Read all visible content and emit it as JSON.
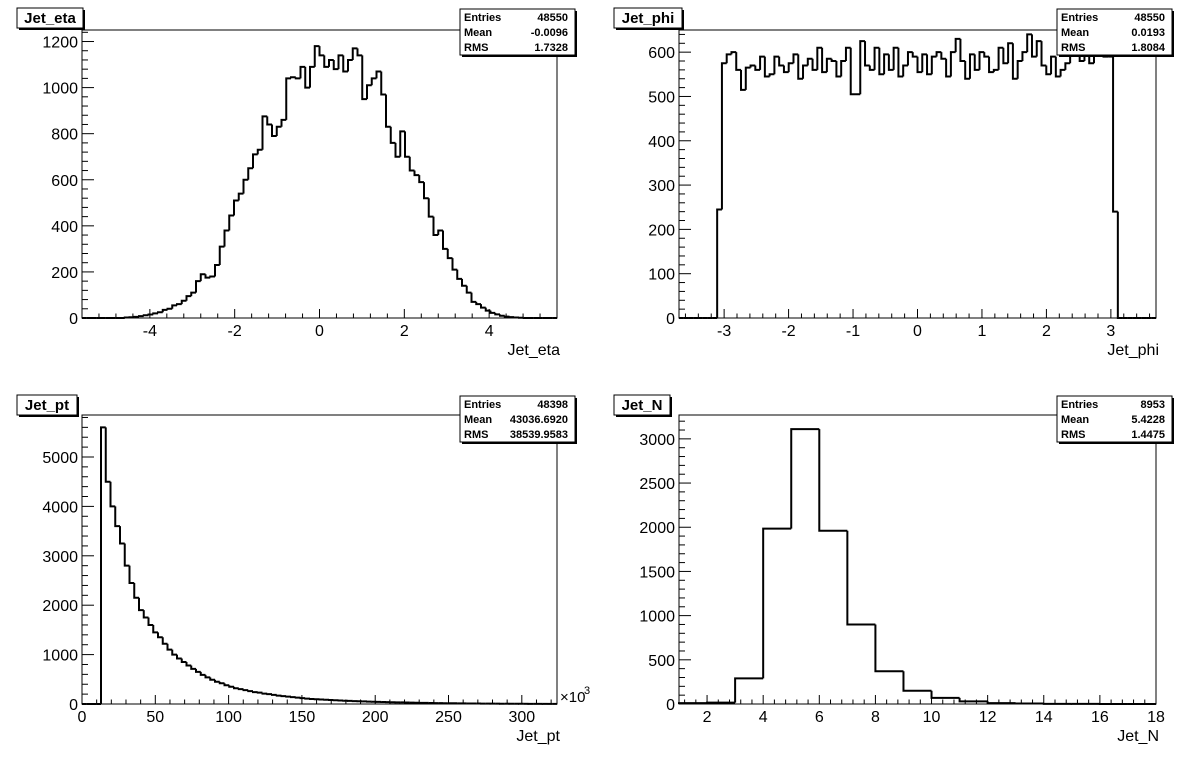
{
  "chart_data": [
    {
      "type": "histogram",
      "title": "Jet_eta",
      "xlabel": "Jet_eta",
      "ylabel": "",
      "xlim": [
        -5.6,
        5.6
      ],
      "ylim": [
        0,
        1250
      ],
      "xticks": [
        -4,
        -2,
        0,
        2,
        4
      ],
      "yticks": [
        0,
        200,
        400,
        600,
        800,
        1000,
        1200
      ],
      "tick_labels_x": [
        "-4",
        "-2",
        "0",
        "2",
        "4"
      ],
      "tick_labels_y": [
        "0",
        "200",
        "400",
        "600",
        "800",
        "1000",
        "1200"
      ],
      "bin_low": -5.6,
      "bin_width": 0.112,
      "values": [
        0,
        0,
        0,
        0,
        0,
        0,
        0,
        0,
        0,
        2,
        3,
        5,
        8,
        12,
        15,
        20,
        25,
        35,
        40,
        55,
        60,
        75,
        95,
        110,
        160,
        190,
        175,
        180,
        230,
        310,
        380,
        445,
        510,
        540,
        600,
        650,
        710,
        730,
        875,
        840,
        790,
        830,
        860,
        1040,
        1045,
        1040,
        1090,
        1000,
        1090,
        1180,
        1140,
        1090,
        1120,
        1080,
        1140,
        1070,
        1120,
        1170,
        1140,
        950,
        1010,
        1040,
        1070,
        970,
        830,
        760,
        700,
        810,
        700,
        640,
        620,
        590,
        520,
        440,
        360,
        380,
        300,
        260,
        210,
        170,
        140,
        110,
        70,
        60,
        45,
        32,
        22,
        16,
        10,
        6,
        4,
        2,
        1,
        0,
        0,
        0,
        0,
        0,
        0,
        0
      ],
      "stats": {
        "entries_label": "Entries",
        "entries": "48550",
        "mean_label": "Mean",
        "mean": "-0.0096",
        "rms_label": "RMS",
        "rms": "1.7328"
      }
    },
    {
      "type": "histogram",
      "title": "Jet_phi",
      "xlabel": "Jet_phi",
      "ylabel": "",
      "xlim": [
        -3.7,
        3.7
      ],
      "ylim": [
        0,
        650
      ],
      "xticks": [
        -3,
        -2,
        -1,
        0,
        1,
        2,
        3
      ],
      "yticks": [
        0,
        100,
        200,
        300,
        400,
        500,
        600
      ],
      "tick_labels_x": [
        "-3",
        "-2",
        "-1",
        "0",
        "1",
        "2",
        "3"
      ],
      "tick_labels_y": [
        "0",
        "100",
        "200",
        "300",
        "400",
        "500",
        "600"
      ],
      "bin_low": -3.7,
      "bin_width": 0.074,
      "values": [
        0,
        0,
        0,
        0,
        0,
        0,
        0,
        0,
        245,
        575,
        595,
        600,
        560,
        515,
        565,
        570,
        560,
        590,
        545,
        550,
        590,
        570,
        555,
        575,
        595,
        540,
        570,
        585,
        560,
        610,
        555,
        585,
        580,
        545,
        580,
        610,
        505,
        505,
        625,
        570,
        560,
        610,
        550,
        595,
        560,
        610,
        545,
        570,
        600,
        590,
        555,
        595,
        550,
        590,
        600,
        585,
        545,
        600,
        630,
        580,
        540,
        595,
        560,
        600,
        590,
        555,
        560,
        610,
        575,
        620,
        540,
        580,
        600,
        640,
        590,
        625,
        570,
        550,
        590,
        545,
        560,
        575,
        600,
        620,
        580,
        630,
        575,
        605,
        595,
        590,
        590,
        240,
        0,
        0,
        0,
        0,
        0,
        0,
        0,
        0
      ],
      "stats": {
        "entries_label": "Entries",
        "entries": "48550",
        "mean_label": "Mean",
        "mean": "0.0193",
        "rms_label": "RMS",
        "rms": "1.8084"
      }
    },
    {
      "type": "histogram",
      "title": "Jet_pt",
      "xlabel": "Jet_pt",
      "ylabel": "",
      "x_multiplier_label": "×10",
      "x_multiplier_exponent": "3",
      "xlim": [
        0,
        324
      ],
      "ylim": [
        0,
        5850
      ],
      "xticks": [
        0,
        50,
        100,
        150,
        200,
        250,
        300
      ],
      "yticks": [
        0,
        1000,
        2000,
        3000,
        4000,
        5000
      ],
      "tick_labels_x": [
        "0",
        "50",
        "100",
        "150",
        "200",
        "250",
        "300"
      ],
      "tick_labels_y": [
        "0",
        "1000",
        "2000",
        "3000",
        "4000",
        "5000"
      ],
      "bin_low": 0,
      "bin_width": 3.24,
      "values": [
        0,
        0,
        0,
        0,
        5600,
        4500,
        4000,
        3600,
        3250,
        2800,
        2450,
        2150,
        1900,
        1750,
        1600,
        1450,
        1350,
        1220,
        1100,
        1000,
        920,
        850,
        780,
        710,
        650,
        590,
        540,
        490,
        450,
        420,
        380,
        350,
        320,
        300,
        280,
        260,
        240,
        230,
        210,
        200,
        185,
        170,
        160,
        150,
        140,
        130,
        120,
        110,
        100,
        95,
        90,
        85,
        80,
        75,
        70,
        66,
        62,
        58,
        55,
        52,
        49,
        46,
        43,
        40,
        38,
        36,
        34,
        32,
        30,
        28,
        26,
        24,
        22,
        20,
        18,
        17,
        16,
        15,
        14,
        13,
        12,
        11,
        10,
        9,
        8,
        8,
        7,
        7,
        6,
        6,
        5,
        5,
        4,
        4,
        3,
        3,
        3,
        2,
        2,
        2
      ],
      "stats": {
        "entries_label": "Entries",
        "entries": "48398",
        "mean_label": "Mean",
        "mean": "43036.6920",
        "rms_label": "RMS",
        "rms": "38539.9583"
      }
    },
    {
      "type": "histogram",
      "title": "Jet_N",
      "xlabel": "Jet_N",
      "ylabel": "",
      "xlim": [
        1,
        18
      ],
      "ylim": [
        0,
        3270
      ],
      "xticks": [
        2,
        4,
        6,
        8,
        10,
        12,
        14,
        16,
        18
      ],
      "yticks": [
        0,
        500,
        1000,
        1500,
        2000,
        2500,
        3000
      ],
      "tick_labels_x": [
        "2",
        "4",
        "6",
        "8",
        "10",
        "12",
        "14",
        "16",
        "18"
      ],
      "tick_labels_y": [
        "0",
        "500",
        "1000",
        "1500",
        "2000",
        "2500",
        "3000"
      ],
      "bin_low": 1,
      "bin_width": 1,
      "values": [
        10,
        15,
        290,
        1985,
        3110,
        1960,
        900,
        370,
        150,
        70,
        30,
        10,
        5,
        2,
        1,
        0,
        0
      ],
      "stats": {
        "entries_label": "Entries",
        "entries": "8953",
        "mean_label": "Mean",
        "mean": "5.4228",
        "rms_label": "RMS",
        "rms": "1.4475"
      }
    }
  ]
}
